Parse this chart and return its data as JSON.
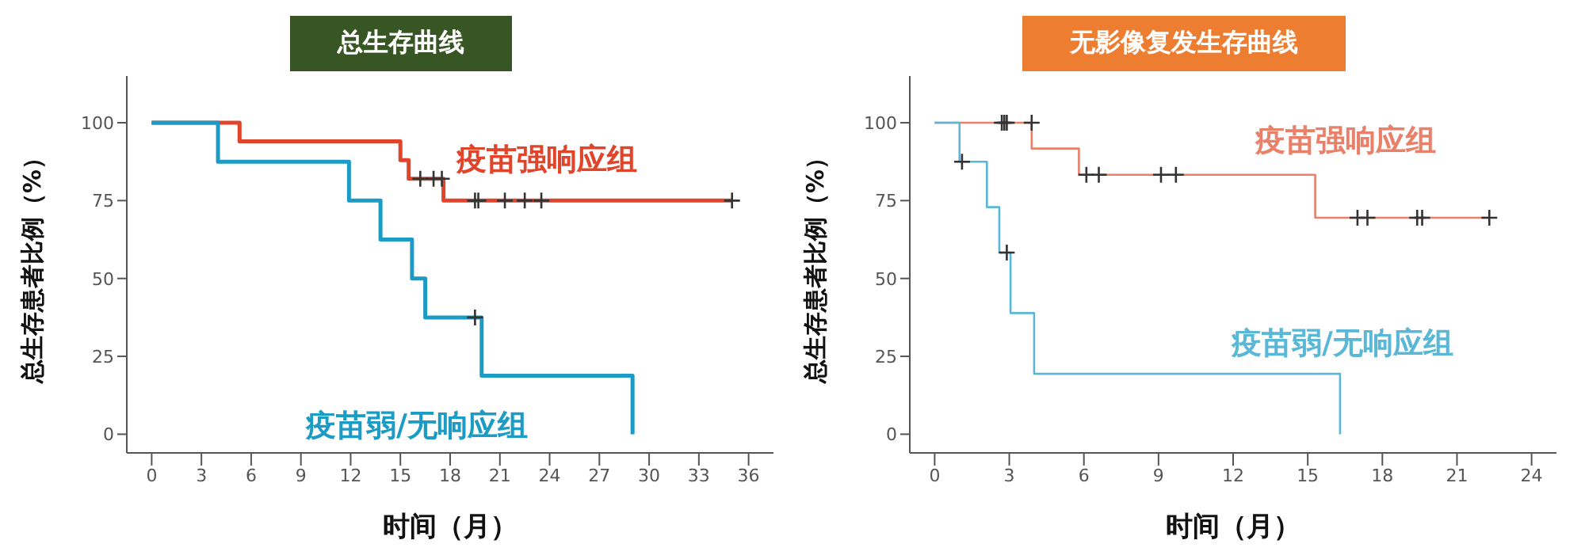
{
  "chart_data": [
    {
      "type": "step",
      "title": "总生存曲线",
      "xlabel": "时间（月）",
      "ylabel": "总生存患者比例（%）",
      "xlim": [
        -1.5,
        37.5
      ],
      "xticks": [
        0,
        3,
        6,
        9,
        12,
        15,
        18,
        21,
        24,
        27,
        30,
        33,
        36
      ],
      "ylim": [
        -6,
        115
      ],
      "yticks": [
        0,
        25,
        50,
        75,
        100
      ],
      "series": [
        {
          "name": "疫苗强响应组",
          "color": "#e0442a",
          "x": [
            0,
            5.3,
            15,
            15.5,
            17.6,
            35
          ],
          "values": [
            100,
            94,
            88,
            82,
            75,
            75
          ]
        },
        {
          "name": "疫苗弱/无响应组",
          "color": "#1c9cc4",
          "x": [
            0,
            4,
            11.9,
            13.8,
            15.7,
            16.5,
            19.9,
            29
          ],
          "values": [
            100,
            87.5,
            75,
            62.5,
            50,
            37.5,
            18.8,
            0
          ]
        },
        {
          "type": "scatter",
          "marker": "cross",
          "color": "#333333",
          "x": [
            16.2,
            17,
            17.5,
            19.5,
            19.7,
            21.3,
            22.5,
            23.5,
            35,
            19.5
          ],
          "values": [
            82,
            82,
            82,
            75,
            75,
            75,
            75,
            75,
            75,
            37.5
          ]
        }
      ]
    },
    {
      "type": "step",
      "title": "无影像复发生存曲线",
      "xlabel": "时间（月）",
      "ylabel": "总生存患者比例（%）",
      "xlim": [
        -1,
        25
      ],
      "xticks": [
        0,
        3,
        6,
        9,
        12,
        15,
        18,
        21,
        24
      ],
      "ylim": [
        -6,
        115
      ],
      "yticks": [
        0,
        25,
        50,
        75,
        100
      ],
      "series": [
        {
          "name": "疫苗强响应组",
          "color": "#e8806a",
          "x": [
            0,
            3.9,
            5.8,
            15.3,
            22.3
          ],
          "values": [
            100,
            91.7,
            83.3,
            69.5,
            69.5
          ]
        },
        {
          "name": "疫苗弱/无响应组",
          "color": "#5ab8d6",
          "x": [
            0,
            1,
            2.1,
            2.6,
            3.05,
            4,
            16.3
          ],
          "values": [
            100,
            87.5,
            72.9,
            58.3,
            38.9,
            19.4,
            0
          ]
        },
        {
          "type": "scatter",
          "marker": "cross",
          "color": "#333333",
          "x": [
            2.7,
            2.8,
            2.9,
            3.9,
            6.1,
            6.6,
            9.1,
            9.7,
            17,
            17.4,
            19.4,
            19.6,
            22.3,
            1.1,
            2.9
          ],
          "values": [
            100,
            100,
            100,
            100,
            83.3,
            83.3,
            83.3,
            83.3,
            69.5,
            69.5,
            69.5,
            69.5,
            69.5,
            87.5,
            58.3
          ]
        }
      ]
    }
  ]
}
